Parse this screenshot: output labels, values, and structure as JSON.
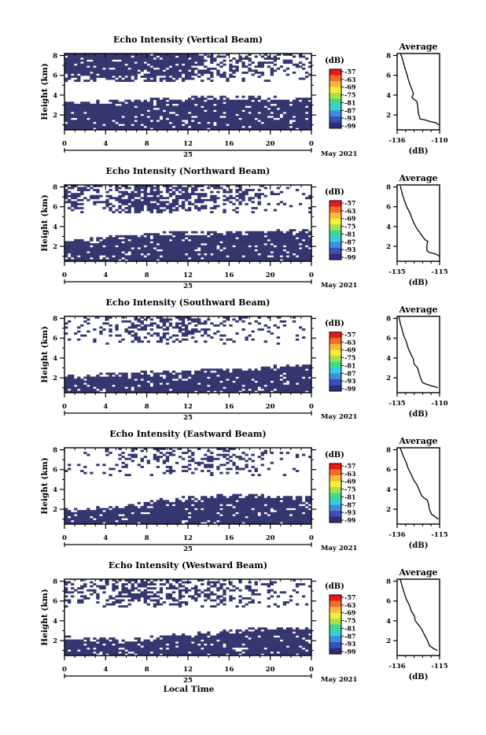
{
  "figure": {
    "xlabel": "Local Time",
    "day_label": "25",
    "month_label": "May 2021",
    "x_ticks": [
      "0",
      "4",
      "8",
      "12",
      "16",
      "20",
      "0"
    ],
    "y_ticks": [
      "2",
      "4",
      "6",
      "8"
    ],
    "y_axis_label": "Height (km)",
    "colorbar_unit": "(dB)",
    "colorbar_labels": [
      "-57",
      "-63",
      "-69",
      "-75",
      "-81",
      "-87",
      "-93",
      "-99"
    ],
    "colorbar_colors": [
      "#e8191a",
      "#f46d2a",
      "#fcb83b",
      "#f6ed3c",
      "#a8e24a",
      "#41d98e",
      "#3ccbd8",
      "#3c8fe0",
      "#3f4fb8",
      "#2d2f7c"
    ],
    "echo_color": "#353670",
    "profile_title": "Average",
    "profile_xlabel": "(dB)"
  },
  "chart_data": [
    {
      "type": "heatmap",
      "title": "Echo Intensity (Vertical Beam)",
      "x_range": [
        0,
        24
      ],
      "y_range": [
        0.5,
        8.2
      ],
      "low_layer_top": [
        3.5,
        3.4,
        3.6,
        3.5,
        3.5,
        3.6,
        3.6,
        3.6,
        3.7,
        3.7,
        3.7,
        3.8,
        3.8,
        3.9,
        3.9,
        3.9,
        4.0,
        3.9,
        3.9,
        3.9,
        3.9,
        3.8,
        3.8,
        3.8,
        3.7
      ],
      "upper_cover": [
        0.9,
        0.95,
        0.9,
        0.9,
        0.85,
        0.85,
        0.85,
        0.8,
        0.85,
        0.85,
        0.85,
        0.85,
        0.8,
        0.75,
        0.5,
        0.45,
        0.4,
        0.35,
        0.35,
        0.4,
        0.4,
        0.35,
        0.3,
        0.25,
        0.2
      ],
      "profile": {
        "xlim": [
          -136,
          -110
        ],
        "xticks": [
          "-136",
          "-110"
        ],
        "points": [
          [
            -110.5,
            1.0
          ],
          [
            -112,
            1.2
          ],
          [
            -116,
            1.35
          ],
          [
            -119,
            1.5
          ],
          [
            -122,
            1.6
          ],
          [
            -123,
            2.2
          ],
          [
            -123.5,
            3.0
          ],
          [
            -124,
            3.4
          ],
          [
            -126,
            3.6
          ],
          [
            -127,
            3.8
          ],
          [
            -126,
            4.1
          ],
          [
            -127,
            4.6
          ],
          [
            -128,
            5.0
          ],
          [
            -129,
            5.5
          ],
          [
            -130,
            6.1
          ],
          [
            -131,
            6.6
          ],
          [
            -132,
            7.2
          ],
          [
            -133,
            7.8
          ],
          [
            -134,
            8.2
          ]
        ]
      }
    },
    {
      "type": "heatmap",
      "title": "Echo Intensity (Northward Beam)",
      "x_range": [
        0,
        24
      ],
      "y_range": [
        0.5,
        8.2
      ],
      "low_layer_top": [
        2.9,
        2.8,
        2.8,
        2.9,
        3.0,
        3.1,
        3.2,
        3.3,
        3.4,
        3.4,
        3.5,
        3.5,
        3.5,
        3.5,
        3.6,
        3.6,
        3.6,
        3.6,
        3.5,
        3.6,
        3.6,
        3.7,
        3.7,
        3.7,
        3.6
      ],
      "upper_cover": [
        0.35,
        0.4,
        0.35,
        0.3,
        0.45,
        0.5,
        0.6,
        0.7,
        0.75,
        0.7,
        0.7,
        0.6,
        0.6,
        0.55,
        0.45,
        0.4,
        0.4,
        0.45,
        0.35,
        0.3,
        0.25,
        0.2,
        0.2,
        0.15,
        0.1
      ],
      "profile": {
        "xlim": [
          -135,
          -115
        ],
        "xticks": [
          "-135",
          "-115"
        ],
        "points": [
          [
            -115,
            1.0
          ],
          [
            -116.5,
            1.2
          ],
          [
            -118,
            1.3
          ],
          [
            -120,
            1.4
          ],
          [
            -121,
            1.6
          ],
          [
            -121,
            2.1
          ],
          [
            -120.5,
            2.5
          ],
          [
            -122,
            2.7
          ],
          [
            -123,
            3.0
          ],
          [
            -124,
            3.3
          ],
          [
            -125,
            3.6
          ],
          [
            -126,
            3.9
          ],
          [
            -127,
            4.3
          ],
          [
            -128,
            4.8
          ],
          [
            -129,
            5.4
          ],
          [
            -130.5,
            6.0
          ],
          [
            -131.5,
            6.6
          ],
          [
            -132.5,
            7.2
          ],
          [
            -133.5,
            8.1
          ]
        ]
      }
    },
    {
      "type": "heatmap",
      "title": "Echo Intensity (Southward Beam)",
      "x_range": [
        0,
        24
      ],
      "y_range": [
        0.5,
        8.2
      ],
      "low_layer_top": [
        2.3,
        2.3,
        2.4,
        2.4,
        2.5,
        2.5,
        2.6,
        2.6,
        2.7,
        2.6,
        2.7,
        2.8,
        2.8,
        2.8,
        2.9,
        2.9,
        3.0,
        3.0,
        3.0,
        3.1,
        3.2,
        3.3,
        3.4,
        3.4,
        3.4
      ],
      "upper_cover": [
        0.1,
        0.1,
        0.15,
        0.1,
        0.15,
        0.2,
        0.3,
        0.35,
        0.35,
        0.4,
        0.45,
        0.55,
        0.6,
        0.5,
        0.3,
        0.25,
        0.25,
        0.3,
        0.2,
        0.15,
        0.1,
        0.05,
        0.1,
        0.05,
        0.05
      ],
      "profile": {
        "xlim": [
          -135,
          -110
        ],
        "xticks": [
          "-135",
          "-110"
        ],
        "points": [
          [
            -111,
            1.0
          ],
          [
            -113,
            1.1
          ],
          [
            -117,
            1.3
          ],
          [
            -120,
            1.5
          ],
          [
            -121,
            1.9
          ],
          [
            -122,
            2.4
          ],
          [
            -123,
            3.0
          ],
          [
            -125,
            3.4
          ],
          [
            -125.5,
            3.9
          ],
          [
            -127,
            4.4
          ],
          [
            -128.5,
            5.0
          ],
          [
            -129.5,
            5.6
          ],
          [
            -131,
            6.2
          ],
          [
            -132,
            6.8
          ],
          [
            -133,
            7.4
          ],
          [
            -134,
            8.2
          ]
        ]
      }
    },
    {
      "type": "heatmap",
      "title": "Echo Intensity (Eastward Beam)",
      "x_range": [
        0,
        24
      ],
      "y_range": [
        0.5,
        8.2
      ],
      "low_layer_top": [
        2.2,
        2.1,
        2.2,
        2.2,
        2.3,
        2.4,
        2.5,
        2.6,
        2.8,
        3.0,
        3.1,
        3.2,
        3.3,
        3.4,
        3.4,
        3.5,
        3.5,
        3.5,
        3.5,
        3.5,
        3.4,
        3.4,
        3.4,
        3.4,
        3.3
      ],
      "upper_cover": [
        0.05,
        0.05,
        0.1,
        0.1,
        0.15,
        0.2,
        0.25,
        0.3,
        0.35,
        0.3,
        0.3,
        0.3,
        0.25,
        0.3,
        0.35,
        0.3,
        0.25,
        0.2,
        0.2,
        0.15,
        0.1,
        0.1,
        0.05,
        0.05,
        0.05
      ],
      "profile": {
        "xlim": [
          -136,
          -115
        ],
        "xticks": [
          "-136",
          "-115"
        ],
        "points": [
          [
            -115.5,
            1.0
          ],
          [
            -117,
            1.2
          ],
          [
            -119,
            1.5
          ],
          [
            -120,
            2.0
          ],
          [
            -120.5,
            2.5
          ],
          [
            -121,
            2.9
          ],
          [
            -123,
            3.2
          ],
          [
            -124,
            3.4
          ],
          [
            -125,
            3.9
          ],
          [
            -126,
            4.4
          ],
          [
            -128,
            5.0
          ],
          [
            -129,
            5.5
          ],
          [
            -130.5,
            6.1
          ],
          [
            -131.5,
            6.7
          ],
          [
            -133,
            7.4
          ],
          [
            -134.5,
            8.2
          ]
        ]
      }
    },
    {
      "type": "heatmap",
      "title": "Echo Intensity (Westward Beam)",
      "x_range": [
        0,
        24
      ],
      "y_range": [
        0.5,
        8.2
      ],
      "low_layer_top": [
        2.5,
        2.4,
        2.4,
        2.3,
        2.3,
        2.2,
        2.2,
        2.3,
        2.4,
        2.5,
        2.6,
        2.7,
        2.8,
        2.9,
        2.9,
        3.0,
        3.1,
        3.2,
        3.3,
        3.3,
        3.4,
        3.4,
        3.4,
        3.4,
        3.4
      ],
      "upper_cover": [
        0.35,
        0.3,
        0.35,
        0.3,
        0.4,
        0.5,
        0.55,
        0.6,
        0.6,
        0.55,
        0.5,
        0.45,
        0.4,
        0.4,
        0.35,
        0.3,
        0.35,
        0.3,
        0.25,
        0.3,
        0.25,
        0.2,
        0.15,
        0.1,
        0.1
      ],
      "profile": {
        "xlim": [
          -136,
          -115
        ],
        "xticks": [
          "-136",
          "-115"
        ],
        "points": [
          [
            -116,
            1.0
          ],
          [
            -118,
            1.2
          ],
          [
            -120,
            1.5
          ],
          [
            -121,
            2.0
          ],
          [
            -122,
            2.4
          ],
          [
            -123,
            2.8
          ],
          [
            -124,
            3.2
          ],
          [
            -125.5,
            3.6
          ],
          [
            -127,
            4.0
          ],
          [
            -127.5,
            4.5
          ],
          [
            -129,
            5.0
          ],
          [
            -130,
            5.6
          ],
          [
            -131.5,
            6.2
          ],
          [
            -132.5,
            6.8
          ],
          [
            -133.5,
            7.5
          ],
          [
            -134.5,
            8.2
          ]
        ]
      }
    }
  ]
}
